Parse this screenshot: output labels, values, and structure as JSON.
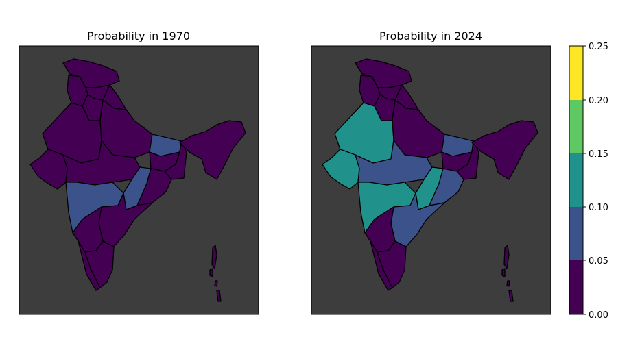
{
  "colors": {
    "background": "#3d3d3d",
    "bins": [
      "#440154",
      "#3b528b",
      "#21918c",
      "#5ec962",
      "#fde725"
    ]
  },
  "maps": [
    {
      "title": "Probability in 1970",
      "regions": [
        {
          "name": "jammu-kashmir",
          "bin": 0
        },
        {
          "name": "himachal",
          "bin": 0
        },
        {
          "name": "punjab",
          "bin": 0
        },
        {
          "name": "uttarakhand",
          "bin": 0
        },
        {
          "name": "haryana",
          "bin": 0
        },
        {
          "name": "rajasthan",
          "bin": 0
        },
        {
          "name": "uttar-pradesh",
          "bin": 0
        },
        {
          "name": "bihar",
          "bin": 1
        },
        {
          "name": "gujarat",
          "bin": 0
        },
        {
          "name": "madhya-pradesh",
          "bin": 0
        },
        {
          "name": "jharkhand",
          "bin": 0
        },
        {
          "name": "west-bengal",
          "bin": 0
        },
        {
          "name": "northeast",
          "bin": 0
        },
        {
          "name": "maharashtra",
          "bin": 1
        },
        {
          "name": "chhattisgarh",
          "bin": 1
        },
        {
          "name": "odisha",
          "bin": 0
        },
        {
          "name": "telangana-andhra",
          "bin": 0
        },
        {
          "name": "karnataka",
          "bin": 0
        },
        {
          "name": "kerala",
          "bin": 0
        },
        {
          "name": "tamil-nadu",
          "bin": 0
        },
        {
          "name": "andaman-nicobar",
          "bin": 0
        }
      ]
    },
    {
      "title": "Probability in 2024",
      "regions": [
        {
          "name": "jammu-kashmir",
          "bin": 0
        },
        {
          "name": "himachal",
          "bin": 0
        },
        {
          "name": "punjab",
          "bin": 0
        },
        {
          "name": "uttarakhand",
          "bin": 0
        },
        {
          "name": "haryana",
          "bin": 0
        },
        {
          "name": "rajasthan",
          "bin": 2
        },
        {
          "name": "uttar-pradesh",
          "bin": 0
        },
        {
          "name": "bihar",
          "bin": 1
        },
        {
          "name": "gujarat",
          "bin": 2
        },
        {
          "name": "madhya-pradesh",
          "bin": 1
        },
        {
          "name": "jharkhand",
          "bin": 0
        },
        {
          "name": "west-bengal",
          "bin": 0
        },
        {
          "name": "northeast",
          "bin": 0
        },
        {
          "name": "maharashtra",
          "bin": 2
        },
        {
          "name": "chhattisgarh",
          "bin": 2
        },
        {
          "name": "odisha",
          "bin": 1
        },
        {
          "name": "telangana-andhra",
          "bin": 1
        },
        {
          "name": "karnataka",
          "bin": 0
        },
        {
          "name": "kerala",
          "bin": 0
        },
        {
          "name": "tamil-nadu",
          "bin": 0
        },
        {
          "name": "andaman-nicobar",
          "bin": 0
        }
      ]
    }
  ],
  "colorbar": {
    "ticks": [
      "0.00",
      "0.05",
      "0.10",
      "0.15",
      "0.20",
      "0.25"
    ]
  }
}
